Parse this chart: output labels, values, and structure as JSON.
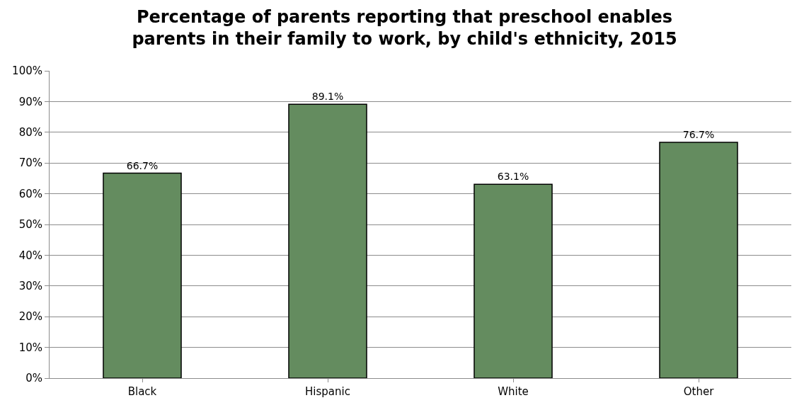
{
  "chart_data": {
    "type": "bar",
    "title": "Percentage of parents reporting that preschool enables\nparents in their family to work, by child's ethnicity, 2015",
    "categories": [
      "Black",
      "Hispanic",
      "White",
      "Other"
    ],
    "values": [
      66.7,
      89.1,
      63.1,
      76.7
    ],
    "value_labels": [
      "66.7%",
      "89.1%",
      "63.1%",
      "76.7%"
    ],
    "color": "#648c5f",
    "ylim": [
      0,
      100
    ],
    "yticks": [
      {
        "value": 0,
        "label": "0%"
      },
      {
        "value": 10,
        "label": "10%"
      },
      {
        "value": 20,
        "label": "20%"
      },
      {
        "value": 30,
        "label": "30%"
      },
      {
        "value": 40,
        "label": "40%"
      },
      {
        "value": 50,
        "label": "50%"
      },
      {
        "value": 60,
        "label": "60%"
      },
      {
        "value": 70,
        "label": "70%"
      },
      {
        "value": 80,
        "label": "80%"
      },
      {
        "value": 90,
        "label": "90%"
      },
      {
        "value": 100,
        "label": "100%"
      }
    ],
    "grid": "y"
  }
}
